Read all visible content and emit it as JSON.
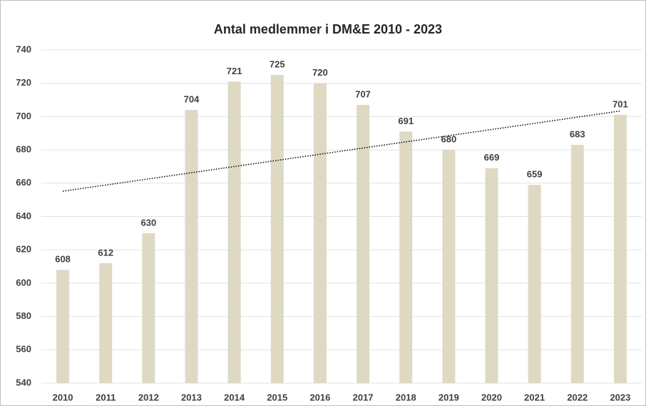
{
  "chart_data": {
    "type": "bar",
    "title": "Antal medlemmer i DM&E 2010 - 2023",
    "categories": [
      "2010",
      "2011",
      "2012",
      "2013",
      "2014",
      "2015",
      "2016",
      "2017",
      "2018",
      "2019",
      "2020",
      "2021",
      "2022",
      "2023"
    ],
    "values": [
      608,
      612,
      630,
      704,
      721,
      725,
      720,
      707,
      691,
      680,
      669,
      659,
      683,
      701
    ],
    "color": "#ddd9c3",
    "ylim": [
      540,
      740
    ],
    "yticks": [
      540,
      560,
      580,
      600,
      620,
      640,
      660,
      680,
      700,
      720,
      740
    ],
    "grid": true,
    "trendline": "linear"
  }
}
